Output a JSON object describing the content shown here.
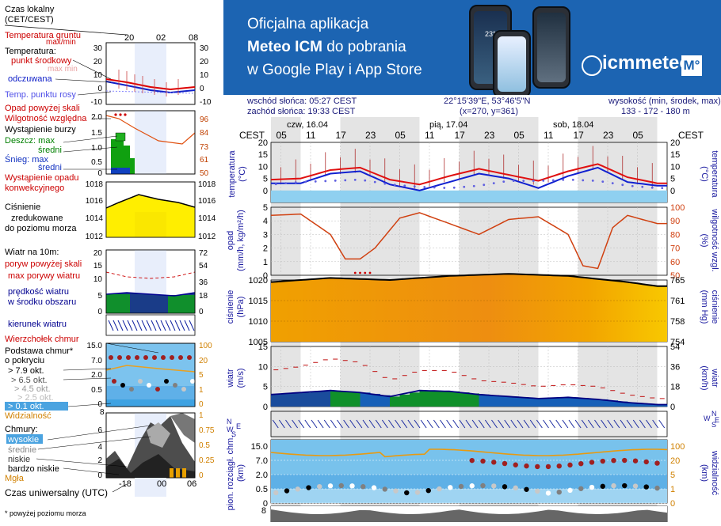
{
  "legend": {
    "czas_lokalny": "Czas lokalny",
    "cet_cest": "(CET/CEST)",
    "top_ticks": [
      "20",
      "02",
      "08"
    ],
    "temp_ground": "Temperatura gruntu",
    "temp_ground_minmax": "max/min",
    "temperatura": "Temperatura:",
    "punkt_srodkowy": "punkt środkowy",
    "max_min_faint": "max min",
    "odczuwana": "odczuwana",
    "temp_rosy": "Temp. punktu rosy",
    "temp_ticks": [
      "30",
      "20",
      "10",
      "0",
      "-10"
    ],
    "opad_powyzej": "Opad powyżej skali",
    "wilgotnosc": "Wilgotność względna",
    "wystapienie_burzy": "Wystąpienie burzy",
    "deszcz_max": "Deszcz: max",
    "sredni": "średni",
    "snieg_max": "Śnieg: max",
    "snieg_sredni": "średni",
    "wystapienie_opadu": "Wystąpienie opadu",
    "konwekcyjnego": "konwekcyjnego",
    "opad_ticks": [
      "2.0",
      "1.5",
      "1.0",
      "0.5",
      "0"
    ],
    "hum_ticks": [
      "96",
      "84",
      "73",
      "61",
      "50"
    ],
    "press_left_ticks": [
      "1018",
      "1016",
      "1014",
      "1012"
    ],
    "press_right_ticks": [
      "1018",
      "1016",
      "1014",
      "1012"
    ],
    "cisnienie": "Ciśnienie",
    "zredukowane": "zredukowane",
    "do_poziomu": "do poziomu morza",
    "wiatr_na": "Wiatr na 10m:",
    "poryw_powyzej": "poryw powyżej skali",
    "max_porywy": "max porywy wiatru",
    "predkosc_wiatru": "prędkość wiatru",
    "w_srodku": "w środku obszaru",
    "wind_left_ticks": [
      "20",
      "15",
      "10",
      "5",
      "0"
    ],
    "wind_right_ticks": [
      "72",
      "54",
      "36",
      "18",
      "0"
    ],
    "kierunek": "kierunek wiatru",
    "wierzcholek": "Wierzchołek chmur",
    "podstawa": "Podstawa chmur*",
    "o_pokryciu": "o pokryciu",
    "okt": [
      "> 7.9 okt.",
      "> 6.5 okt.",
      "> 4.5 okt.",
      "> 2.5 okt.",
      "> 0.1 okt."
    ],
    "cloud_left_ticks": [
      "15.0",
      "7.0",
      "2.0",
      "0.5",
      "0"
    ],
    "cloud_right_ticks": [
      "100",
      "20",
      "5",
      "1",
      "0"
    ],
    "widzialnosc": "Widzialność",
    "vis_ticks": [
      "8"
    ],
    "chmury": "Chmury:",
    "wysokie": "wysokie",
    "srednie": "średnie",
    "niskie": "niskie",
    "bardzo_niskie": "bardzo niskie",
    "mgla": "Mgła",
    "cl_left_ticks": [
      "6",
      "4",
      "2",
      "0"
    ],
    "cl_right_ticks": [
      "1",
      "0.75",
      "0.5",
      "0.25",
      "0"
    ],
    "utc_ticks": [
      "-18",
      "00",
      "06"
    ],
    "czas_uniwersalny": "Czas uniwersalny (UTC)",
    "footnote": "* powyżej poziomu morza"
  },
  "banner": {
    "line1": "Oficjalna aplikacja",
    "line2_bold": "Meteo ICM",
    "line2_rest": " do pobrania",
    "line3": "w Google Play i App Store",
    "brand": "icmmeteo",
    "brand_box": "M°",
    "phone_temp": "23°"
  },
  "info": {
    "sunrise": "wschód słońca: 05:27 CEST",
    "sunset": "zachód słońca: 19:33 CEST",
    "coords": "22°15'39\"E, 53°46'5\"N",
    "grid": "(x=270,  y=361)",
    "height_label": "wysokość (min, środek, max)",
    "height_values": "133 - 172 - 180 m"
  },
  "axis": {
    "cest": "CEST",
    "days": [
      "czw, 16.04",
      "pią, 17.04",
      "sob, 18.04"
    ],
    "hours": [
      "05",
      "11",
      "17",
      "23",
      "05",
      "11",
      "17",
      "23",
      "05",
      "11",
      "17",
      "23",
      "05"
    ]
  },
  "panels": {
    "temperature": {
      "left": "temperatura",
      "left_unit": "(°C)",
      "right": "temperatura",
      "right_unit": "(°C)"
    },
    "precip": {
      "left": "opad",
      "left_unit": "(mm/h, kg/m²/h)",
      "right": "wilgotność wzgl.",
      "right_unit": "(%)"
    },
    "pressure": {
      "left": "ciśnienie",
      "left_unit": "(hPa)",
      "right": "ciśnienie",
      "right_unit": "(mm Hg)"
    },
    "wind": {
      "left": "wiatr",
      "left_unit": "(m/s)",
      "right": "wiatr",
      "right_unit": "(km/h)"
    },
    "clouds": {
      "left": "pion. rozciągł. chm.",
      "left_unit": "(km)",
      "right": "widzialność",
      "right_unit": "(km)"
    }
  },
  "chart_data": [
    {
      "type": "line",
      "title": "",
      "ylabel": "temperatura (°C)",
      "ylim": [
        -5,
        20
      ],
      "yticks": [
        20,
        15,
        10,
        5,
        0
      ],
      "x_hours": [
        0,
        6,
        12,
        18,
        24,
        30,
        36,
        42,
        48,
        54,
        60,
        66,
        72,
        78
      ],
      "series": [
        {
          "values": [
            4.5,
            5,
            8.5,
            9.5,
            4.5,
            2.5,
            6,
            9,
            6.5,
            4,
            8,
            11,
            5.5,
            3
          ]
        },
        {
          "values": [
            3,
            3,
            7,
            8,
            2.5,
            0,
            3.5,
            7,
            5,
            1,
            6,
            9.5,
            3.5,
            2
          ]
        },
        {
          "values": [
            2.5,
            3.5,
            4,
            4.5,
            2.5,
            1.5,
            1,
            2,
            4,
            4,
            4.5,
            4,
            2,
            1
          ]
        }
      ],
      "right_ticks": [
        20,
        15,
        10,
        5,
        0
      ]
    },
    {
      "type": "line",
      "ylabel": "opad (mm/h, kg/m²/h)",
      "ylim": [
        0,
        5
      ],
      "yticks": [
        5,
        4,
        3,
        2,
        1,
        0
      ],
      "right_ylabel": "wilgotność wzgl. (%)",
      "right_ylim": [
        50,
        100
      ],
      "right_ticks": [
        100,
        90,
        80,
        70,
        60,
        50
      ],
      "x_hours": [
        0,
        6,
        12,
        15,
        18,
        21,
        26,
        30,
        36,
        42,
        48,
        54,
        60,
        63,
        66,
        69,
        72,
        78
      ],
      "series": [
        {
          "values": [
            94,
            95,
            80,
            62,
            62,
            70,
            92,
            96,
            88,
            80,
            91,
            93,
            80,
            57,
            55,
            85,
            94,
            88
          ]
        }
      ]
    },
    {
      "type": "area",
      "ylabel": "ciśnienie (hPa)",
      "ylim": [
        1005,
        1020
      ],
      "yticks": [
        1020,
        1015,
        1010,
        1005
      ],
      "right_ylabel": "ciśnienie (mm Hg)",
      "right_ticks": [
        765,
        761,
        758,
        754
      ],
      "x_hours": [
        0,
        12,
        24,
        36,
        48,
        60,
        72,
        78
      ],
      "series": [
        {
          "values": [
            1019.5,
            1020.5,
            1020,
            1021,
            1021.5,
            1021,
            1019.5,
            1018.5
          ]
        }
      ]
    },
    {
      "type": "area",
      "ylabel": "wiatr (m/s)",
      "ylim": [
        0,
        15
      ],
      "yticks": [
        15,
        10,
        5,
        0
      ],
      "right_ylabel": "wiatr (km/h)",
      "right_ticks": [
        54,
        36,
        18,
        0
      ],
      "x_hours": [
        0,
        6,
        12,
        18,
        24,
        30,
        36,
        42,
        48,
        54,
        60,
        66,
        72,
        78
      ],
      "series": [
        {
          "values": [
            3,
            3.5,
            4,
            3.5,
            2.5,
            4,
            3.8,
            3,
            2.5,
            2,
            2.3,
            1.8,
            1,
            0.5
          ]
        },
        {
          "values": [
            9,
            10,
            12,
            11,
            6.5,
            9,
            9,
            6.5,
            6,
            5,
            5.5,
            5,
            3,
            2
          ]
        }
      ]
    },
    {
      "type": "scatter",
      "ylabel": "pion. rozciągł. chm. (km)",
      "yticks": [
        "15.0",
        "7.0",
        "2.0",
        "0.5",
        "0"
      ],
      "right_ylabel": "widzialność (km)",
      "right_ticks": [
        "100",
        "20",
        "5",
        "1",
        "0"
      ]
    }
  ]
}
